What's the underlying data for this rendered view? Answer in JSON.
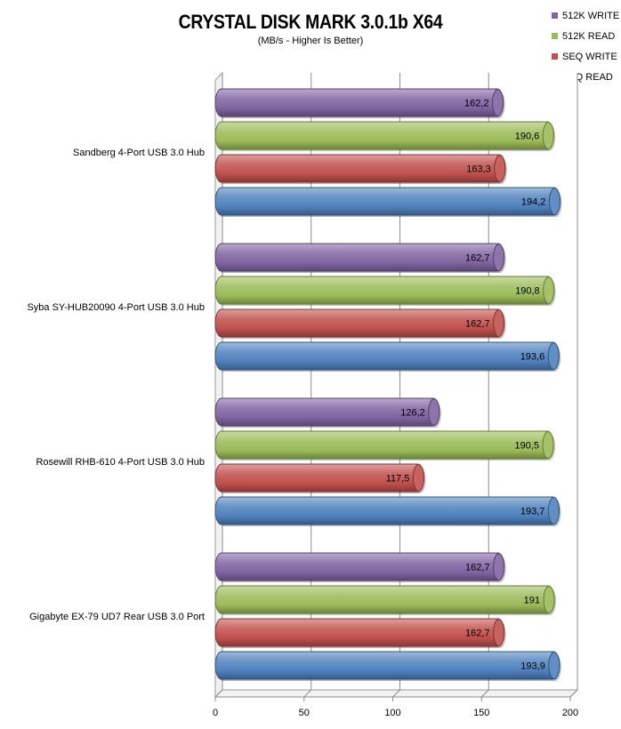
{
  "chart_data": {
    "type": "bar",
    "orientation": "horizontal",
    "title": "CRYSTAL DISK  MARK 3.0.1b  X64",
    "subtitle": "(MB/s - Higher Is Better)",
    "categories": [
      "Sandberg 4-Port USB 3.0 Hub",
      "Syba SY-HUB20090 4-Port USB 3.0 Hub",
      "Rosewill RHB-610 4-Port USB 3.0 Hub",
      "Gigabyte EX-79 UD7 Rear USB 3.0 Port"
    ],
    "series": [
      {
        "name": "512K WRITE",
        "color": "#8064a2",
        "values": [
          162.2,
          162.7,
          126.2,
          162.7
        ],
        "labels": [
          "162,2",
          "162,7",
          "126,2",
          "162,7"
        ]
      },
      {
        "name": "512K READ",
        "color": "#9bbb59",
        "values": [
          190.6,
          190.8,
          190.5,
          191
        ],
        "labels": [
          "190,6",
          "190,8",
          "190,5",
          "191"
        ]
      },
      {
        "name": "SEQ WRITE",
        "color": "#c0504d",
        "values": [
          163.3,
          162.7,
          117.5,
          162.7
        ],
        "labels": [
          "163,3",
          "162,7",
          "117,5",
          "162,7"
        ]
      },
      {
        "name": "SEQ READ",
        "color": "#4f81bd",
        "values": [
          194.2,
          193.6,
          193.7,
          193.9
        ],
        "labels": [
          "194,2",
          "193,6",
          "193,7",
          "193,9"
        ]
      }
    ],
    "legend_order": [
      "512K WRITE",
      "512K READ",
      "SEQ WRITE",
      "SEQ READ"
    ],
    "xlim": [
      0,
      200
    ],
    "xticks": [
      "0",
      "50",
      "100",
      "150",
      "200"
    ],
    "grid": true,
    "legend_position": "top-right"
  }
}
